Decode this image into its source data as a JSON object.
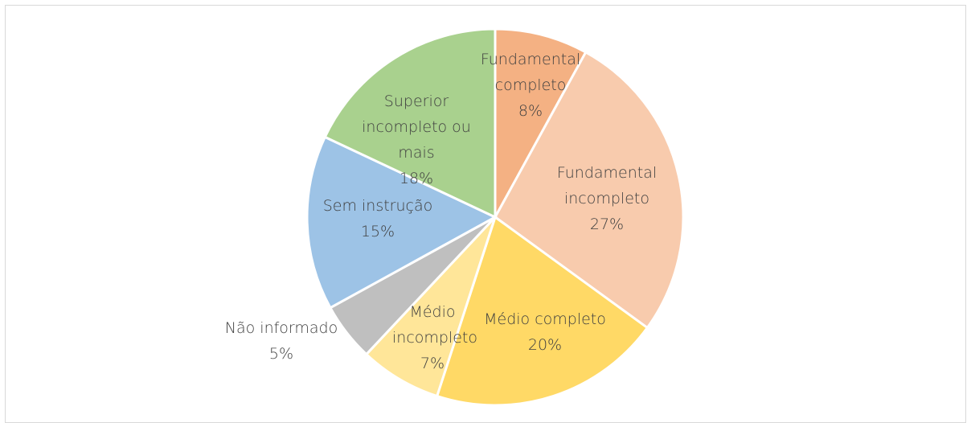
{
  "chart_data": {
    "type": "pie",
    "categories": [
      "Fundamental completo",
      "Fundamental incompleto",
      "Médio completo",
      "Médio incompleto",
      "Não informado",
      "Sem instrução",
      "Superior incompleto ou mais"
    ],
    "values": [
      8,
      27,
      20,
      7,
      5,
      15,
      18
    ],
    "value_labels": [
      "8%",
      "27%",
      "20%",
      "7%",
      "5%",
      "15%",
      "18%"
    ],
    "colors": [
      "#f4b183",
      "#f8cbad",
      "#ffd966",
      "#ffe699",
      "#bfbfbf",
      "#9dc3e6",
      "#a9d18e"
    ]
  }
}
